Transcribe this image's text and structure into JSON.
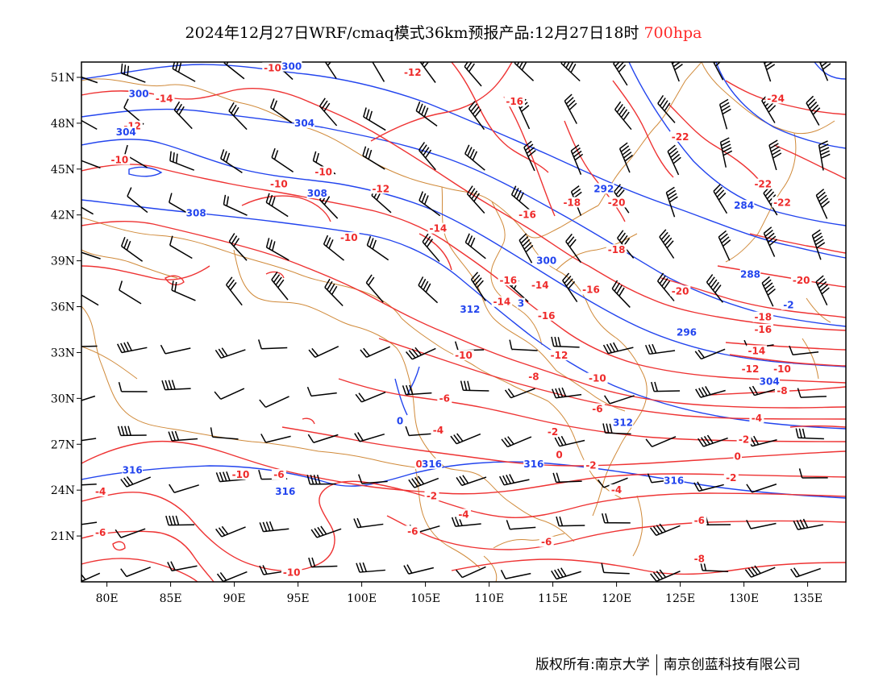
{
  "title": {
    "text": "2024年12月27日WRF/cmaq模式36km预报产品:12月27日18时",
    "level": "700hpa"
  },
  "colors": {
    "temperature": "#ee3333",
    "height": "#2244ee",
    "border": "#d08a3a",
    "wind": "#000000"
  },
  "map": {
    "lat_labels": [
      "51N",
      "48N",
      "45N",
      "42N",
      "39N",
      "36N",
      "33N",
      "30N",
      "27N",
      "24N",
      "21N"
    ],
    "lon_labels": [
      "80E",
      "85E",
      "90E",
      "95E",
      "100E",
      "105E",
      "110E",
      "115E",
      "120E",
      "125E",
      "130E",
      "135E"
    ],
    "lat_values": [
      51,
      48,
      45,
      42,
      39,
      36,
      33,
      30,
      27,
      24,
      21
    ],
    "lon_values": [
      80,
      85,
      90,
      95,
      100,
      105,
      110,
      115,
      120,
      125,
      130,
      135
    ],
    "lon_range": [
      78,
      138
    ],
    "lat_range": [
      18,
      52
    ],
    "temperature_labels": [
      {
        "t": "-10",
        "lon": 93,
        "lat": 51.5
      },
      {
        "t": "-12",
        "lon": 104,
        "lat": 51.2
      },
      {
        "t": "-14",
        "lon": 84.5,
        "lat": 49.5
      },
      {
        "t": "-16",
        "lon": 112,
        "lat": 49.3
      },
      {
        "t": "-24",
        "lon": 132.5,
        "lat": 49.5
      },
      {
        "t": "-12",
        "lon": 82,
        "lat": 47.7
      },
      {
        "t": "-22",
        "lon": 125,
        "lat": 47.0
      },
      {
        "t": "-10",
        "lon": 81,
        "lat": 45.5
      },
      {
        "t": "-10",
        "lon": 97,
        "lat": 44.7
      },
      {
        "t": "-10",
        "lon": 93.5,
        "lat": 43.9
      },
      {
        "t": "-12",
        "lon": 101.5,
        "lat": 43.6
      },
      {
        "t": "-22",
        "lon": 131.5,
        "lat": 43.9
      },
      {
        "t": "-18",
        "lon": 116.5,
        "lat": 42.7
      },
      {
        "t": "-20",
        "lon": 120,
        "lat": 42.7
      },
      {
        "t": "-22",
        "lon": 133,
        "lat": 42.7
      },
      {
        "t": "-16",
        "lon": 113,
        "lat": 41.9
      },
      {
        "t": "-14",
        "lon": 106,
        "lat": 41.0
      },
      {
        "t": "-10",
        "lon": 99,
        "lat": 40.4
      },
      {
        "t": "-18",
        "lon": 120,
        "lat": 39.6
      },
      {
        "t": "-16",
        "lon": 111.5,
        "lat": 37.6
      },
      {
        "t": "-14",
        "lon": 114,
        "lat": 37.3
      },
      {
        "t": "-16",
        "lon": 118,
        "lat": 37.0
      },
      {
        "t": "-20",
        "lon": 125,
        "lat": 36.9
      },
      {
        "t": "-20",
        "lon": 134.5,
        "lat": 37.6
      },
      {
        "t": "-14",
        "lon": 111,
        "lat": 36.2
      },
      {
        "t": "-16",
        "lon": 114.5,
        "lat": 35.3
      },
      {
        "t": "-18",
        "lon": 131.5,
        "lat": 35.2
      },
      {
        "t": "-16",
        "lon": 131.5,
        "lat": 34.4
      },
      {
        "t": "-10",
        "lon": 108,
        "lat": 32.7
      },
      {
        "t": "-12",
        "lon": 115.5,
        "lat": 32.7
      },
      {
        "t": "-14",
        "lon": 131,
        "lat": 33.0
      },
      {
        "t": "-12",
        "lon": 130.5,
        "lat": 31.8
      },
      {
        "t": "-10",
        "lon": 133,
        "lat": 31.8
      },
      {
        "t": "-8",
        "lon": 113.5,
        "lat": 31.3
      },
      {
        "t": "-10",
        "lon": 118.5,
        "lat": 31.2
      },
      {
        "t": "-8",
        "lon": 133,
        "lat": 30.4
      },
      {
        "t": "-6",
        "lon": 106.5,
        "lat": 29.9
      },
      {
        "t": "-6",
        "lon": 118.5,
        "lat": 29.2
      },
      {
        "t": "-4",
        "lon": 131,
        "lat": 28.6
      },
      {
        "t": "-4",
        "lon": 106,
        "lat": 27.8
      },
      {
        "t": "-2",
        "lon": 115,
        "lat": 27.7
      },
      {
        "t": "-2",
        "lon": 130,
        "lat": 27.2
      },
      {
        "t": "0",
        "lon": 115.5,
        "lat": 26.2
      },
      {
        "t": "0",
        "lon": 129.5,
        "lat": 26.1
      },
      {
        "t": "0",
        "lon": 104.5,
        "lat": 25.6
      },
      {
        "t": "-2",
        "lon": 118,
        "lat": 25.5
      },
      {
        "t": "-10",
        "lon": 90.5,
        "lat": 24.9
      },
      {
        "t": "-6",
        "lon": 93.5,
        "lat": 24.9
      },
      {
        "t": "-2",
        "lon": 129,
        "lat": 24.7
      },
      {
        "t": "-4",
        "lon": 79.5,
        "lat": 23.8
      },
      {
        "t": "-4",
        "lon": 120,
        "lat": 23.9
      },
      {
        "t": "-2",
        "lon": 105.5,
        "lat": 23.5
      },
      {
        "t": "-4",
        "lon": 108,
        "lat": 22.3
      },
      {
        "t": "-6",
        "lon": 126.5,
        "lat": 21.9
      },
      {
        "t": "-6",
        "lon": 79.5,
        "lat": 21.1
      },
      {
        "t": "-6",
        "lon": 104,
        "lat": 21.2
      },
      {
        "t": "-6",
        "lon": 114.5,
        "lat": 20.5
      },
      {
        "t": "-8",
        "lon": 126.5,
        "lat": 19.4
      },
      {
        "t": "-10",
        "lon": 94.5,
        "lat": 18.5
      }
    ],
    "height_labels": [
      {
        "t": "300",
        "lon": 94.5,
        "lat": 51.6
      },
      {
        "t": "300",
        "lon": 82.5,
        "lat": 49.8
      },
      {
        "t": "304",
        "lon": 95.5,
        "lat": 47.9
      },
      {
        "t": "304",
        "lon": 81.5,
        "lat": 47.3
      },
      {
        "t": "292",
        "lon": 119,
        "lat": 43.6
      },
      {
        "t": "308",
        "lon": 96.5,
        "lat": 43.3
      },
      {
        "t": "284",
        "lon": 130,
        "lat": 42.5
      },
      {
        "t": "308",
        "lon": 87,
        "lat": 42.0
      },
      {
        "t": "300",
        "lon": 114.5,
        "lat": 38.9
      },
      {
        "t": "288",
        "lon": 130.5,
        "lat": 38.0
      },
      {
        "t": "-2",
        "lon": 133.5,
        "lat": 36.0
      },
      {
        "t": "312",
        "lon": 108.5,
        "lat": 35.7
      },
      {
        "t": "3",
        "lon": 112.5,
        "lat": 36.1
      },
      {
        "t": "296",
        "lon": 125.5,
        "lat": 34.2
      },
      {
        "t": "304",
        "lon": 132,
        "lat": 31.0
      },
      {
        "t": "312",
        "lon": 120.5,
        "lat": 28.3
      },
      {
        "t": "0",
        "lon": 103,
        "lat": 28.4
      },
      {
        "t": "316",
        "lon": 105.5,
        "lat": 25.6
      },
      {
        "t": "316",
        "lon": 113.5,
        "lat": 25.6
      },
      {
        "t": "316",
        "lon": 82,
        "lat": 25.2
      },
      {
        "t": "316",
        "lon": 124.5,
        "lat": 24.5
      },
      {
        "t": "316",
        "lon": 94,
        "lat": 23.8
      }
    ]
  },
  "footer": {
    "left": "版权所有:南京大学",
    "right": "南京创蓝科技有限公司"
  }
}
